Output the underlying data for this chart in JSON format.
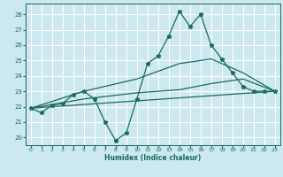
{
  "xlabel": "Humidex (Indice chaleur)",
  "bg_color": "#cce8f0",
  "grid_color": "#ffffff",
  "line_color": "#1a6b5a",
  "xlim": [
    -0.5,
    23.5
  ],
  "ylim": [
    19.5,
    28.7
  ],
  "xticks": [
    0,
    1,
    2,
    3,
    4,
    5,
    6,
    7,
    8,
    9,
    10,
    11,
    12,
    13,
    14,
    15,
    16,
    17,
    18,
    19,
    20,
    21,
    22,
    23
  ],
  "yticks": [
    20,
    21,
    22,
    23,
    24,
    25,
    26,
    27,
    28
  ],
  "main_line": {
    "x": [
      0,
      1,
      2,
      3,
      4,
      5,
      6,
      7,
      8,
      9,
      10,
      11,
      12,
      13,
      14,
      15,
      16,
      17,
      18,
      19,
      20,
      21,
      22,
      23
    ],
    "y": [
      21.9,
      21.6,
      22.1,
      22.2,
      22.8,
      23.0,
      22.5,
      21.0,
      19.8,
      20.3,
      22.5,
      24.8,
      25.3,
      26.6,
      28.2,
      27.2,
      28.0,
      26.0,
      25.1,
      24.2,
      23.3,
      23.0,
      23.0,
      23.0
    ]
  },
  "trend_lines": [
    {
      "x": [
        0,
        23
      ],
      "y": [
        21.9,
        23.0
      ]
    },
    {
      "x": [
        0,
        5,
        10,
        14,
        17,
        20,
        23
      ],
      "y": [
        21.9,
        23.0,
        23.8,
        24.8,
        25.1,
        24.2,
        23.0
      ]
    },
    {
      "x": [
        0,
        5,
        10,
        14,
        17,
        20,
        23
      ],
      "y": [
        21.9,
        22.5,
        22.9,
        23.1,
        23.5,
        23.8,
        23.0
      ]
    }
  ]
}
